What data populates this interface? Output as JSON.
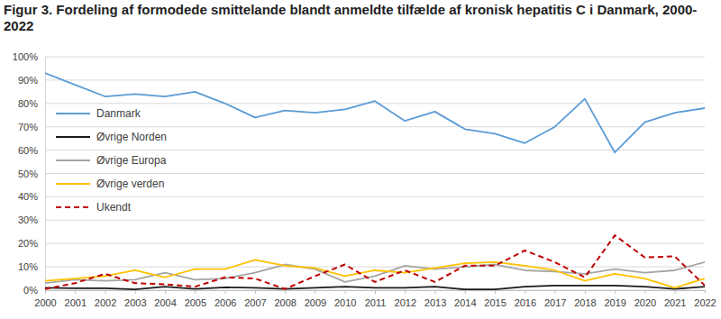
{
  "chart_data": {
    "type": "line",
    "title": "Figur 3. Fordeling af formodede smittelande blandt anmeldte tilfælde af kronisk hepatitis C i Danmark, 2000-2022",
    "x": [
      2000,
      2001,
      2002,
      2003,
      2004,
      2005,
      2006,
      2007,
      2008,
      2009,
      2010,
      2011,
      2012,
      2013,
      2014,
      2015,
      2016,
      2017,
      2018,
      2019,
      2020,
      2021,
      2022
    ],
    "xlim": [
      2000,
      2022
    ],
    "xticks": [
      2000,
      2001,
      2002,
      2003,
      2004,
      2005,
      2006,
      2007,
      2008,
      2009,
      2010,
      2011,
      2012,
      2013,
      2014,
      2015,
      2016,
      2017,
      2018,
      2019,
      2020,
      2021,
      2022
    ],
    "ylim": [
      0,
      100
    ],
    "yticks": [
      {
        "value": 0,
        "label": "0%"
      },
      {
        "value": 10,
        "label": "10%"
      },
      {
        "value": 20,
        "label": "20%"
      },
      {
        "value": 30,
        "label": "30%"
      },
      {
        "value": 40,
        "label": "40%"
      },
      {
        "value": 50,
        "label": "50%"
      },
      {
        "value": 60,
        "label": "60%"
      },
      {
        "value": 70,
        "label": "70%"
      },
      {
        "value": 80,
        "label": "80%"
      },
      {
        "value": 90,
        "label": "90%"
      },
      {
        "value": 100,
        "label": "100%"
      }
    ],
    "grid": true,
    "legend": "left",
    "series": [
      {
        "name": "Danmark",
        "color": "#5b9bd5",
        "line_style": "solid",
        "values": [
          93,
          88,
          83,
          84,
          83,
          85,
          80,
          74,
          77,
          76,
          77.5,
          81,
          72.5,
          76.5,
          69,
          67,
          63,
          70,
          82,
          59,
          72,
          76,
          78
        ]
      },
      {
        "name": "Øvrige Norden",
        "color": "#1a1a1a",
        "line_style": "solid",
        "values": [
          1,
          0.8,
          0.8,
          0.3,
          1.5,
          0.5,
          1.2,
          1,
          0.5,
          1,
          1.5,
          1,
          1,
          1.5,
          0.3,
          0.3,
          1.5,
          2,
          2,
          2,
          1.5,
          0.5,
          1.5
        ]
      },
      {
        "name": "Øvrige Europa",
        "color": "#a5a5a5",
        "line_style": "solid",
        "values": [
          3,
          4.5,
          4,
          4.5,
          7.5,
          4.5,
          5,
          7.5,
          11,
          9,
          3.5,
          6,
          10.5,
          9,
          10,
          11,
          8.5,
          8,
          7,
          9,
          7.5,
          8.5,
          12
        ]
      },
      {
        "name": "Øvrige verden",
        "color": "#ffc000",
        "line_style": "solid",
        "values": [
          4,
          5,
          6,
          8.5,
          5.5,
          9,
          9,
          13,
          10.5,
          9.5,
          6,
          8.5,
          7.5,
          9.5,
          11.5,
          12,
          10.5,
          8.5,
          4,
          7,
          5,
          1,
          5
        ]
      },
      {
        "name": "Ukendt",
        "color": "#c00000",
        "line_style": "dashed",
        "values": [
          0.5,
          3,
          7,
          3,
          2.5,
          1.5,
          5.5,
          5,
          0.5,
          6,
          11,
          3.5,
          8.5,
          3.5,
          10.5,
          10.5,
          17,
          12,
          5.5,
          23.5,
          14,
          14.5,
          2
        ]
      }
    ]
  }
}
